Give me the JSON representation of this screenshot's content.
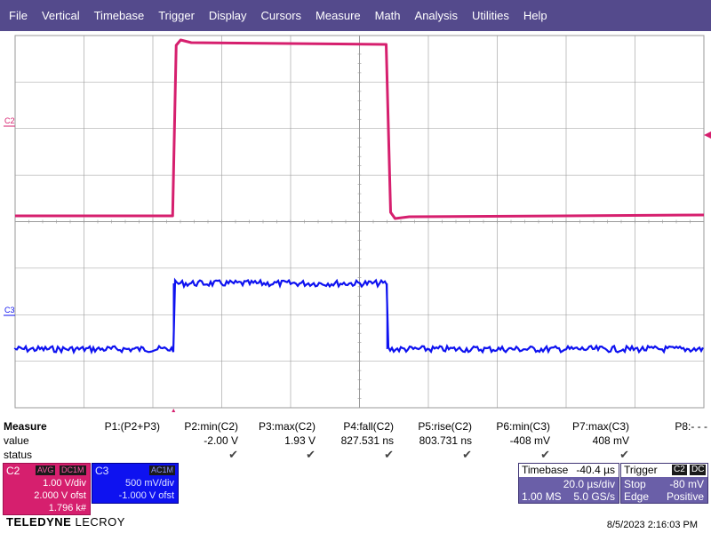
{
  "menu": [
    "File",
    "Vertical",
    "Timebase",
    "Trigger",
    "Display",
    "Cursors",
    "Measure",
    "Math",
    "Analysis",
    "Utilities",
    "Help"
  ],
  "colors": {
    "menu_bg": "#544a8c",
    "c2": "#d61f6e",
    "c3": "#0e12f0",
    "grid": "#9a9a9a"
  },
  "scope": {
    "c2_label": "C2",
    "c3_label": "C3",
    "c2_waveform": {
      "low_level": -2.0,
      "high_level": 1.93,
      "edge_rise_div": 2.3,
      "edge_fall_div": 5.4
    },
    "c3_waveform": {
      "low_level": -0.408,
      "high_level": 0.408
    }
  },
  "measure": {
    "row_labels": [
      "Measure",
      "value",
      "status"
    ],
    "columns": [
      {
        "name": "P1:(P2+P3)",
        "value": "",
        "status": ""
      },
      {
        "name": "P2:min(C2)",
        "value": "-2.00 V",
        "status": "✔"
      },
      {
        "name": "P3:max(C2)",
        "value": "1.93 V",
        "status": "✔"
      },
      {
        "name": "P4:fall(C2)",
        "value": "827.531 ns",
        "status": "✔"
      },
      {
        "name": "P5:rise(C2)",
        "value": "803.731 ns",
        "status": "✔"
      },
      {
        "name": "P6:min(C3)",
        "value": "-408 mV",
        "status": "✔"
      },
      {
        "name": "P7:max(C3)",
        "value": "408 mV",
        "status": "✔"
      },
      {
        "name": "P8:- - -",
        "value": "",
        "status": ""
      }
    ]
  },
  "c2_box": {
    "name": "C2",
    "tags": [
      "AVG",
      "DC1M"
    ],
    "lines": [
      "1.00 V/div",
      "2.000 V ofst",
      "1.796 k#"
    ]
  },
  "c3_box": {
    "name": "C3",
    "tags": [
      "AC1M"
    ],
    "lines": [
      "500 mV/div",
      "-1.000 V ofst"
    ]
  },
  "timebase": {
    "label": "Timebase",
    "delay": "-40.4 µs",
    "lines_right": [
      "20.0 µs/div",
      "5.0 GS/s"
    ],
    "samples": "1.00 MS"
  },
  "trigger": {
    "label": "Trigger",
    "badges": [
      "C2",
      "DC"
    ],
    "mode": "Stop",
    "level": "-80 mV",
    "type": "Edge",
    "slope": "Positive"
  },
  "footer": {
    "brand_bold": "TELEDYNE",
    "brand_light": "LECROY",
    "datetime": "8/5/2023 2:16:03 PM"
  }
}
